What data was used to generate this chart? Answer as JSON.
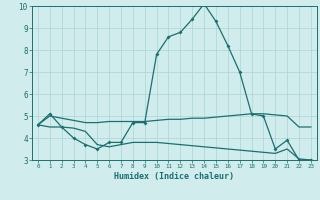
{
  "xlabel": "Humidex (Indice chaleur)",
  "x": [
    0,
    1,
    2,
    3,
    4,
    5,
    6,
    7,
    8,
    9,
    10,
    11,
    12,
    13,
    14,
    15,
    16,
    17,
    18,
    19,
    20,
    21,
    22,
    23
  ],
  "line_top": [
    4.6,
    5.1,
    4.5,
    4.0,
    3.7,
    3.5,
    3.8,
    3.8,
    4.7,
    4.7,
    7.8,
    8.6,
    8.8,
    9.4,
    10.1,
    9.3,
    8.2,
    7.0,
    5.1,
    5.0,
    3.5,
    3.9,
    3.0,
    3.0
  ],
  "line_mid": [
    4.6,
    5.0,
    4.9,
    4.8,
    4.7,
    4.7,
    4.75,
    4.75,
    4.75,
    4.75,
    4.8,
    4.85,
    4.85,
    4.9,
    4.9,
    4.95,
    5.0,
    5.05,
    5.1,
    5.1,
    5.05,
    5.0,
    4.5,
    4.5
  ],
  "line_bot": [
    4.6,
    4.5,
    4.5,
    4.45,
    4.3,
    3.7,
    3.6,
    3.7,
    3.8,
    3.8,
    3.8,
    3.75,
    3.7,
    3.65,
    3.6,
    3.55,
    3.5,
    3.45,
    3.4,
    3.35,
    3.3,
    3.5,
    3.05,
    3.0
  ],
  "color": "#1a7070",
  "bg_color": "#d0ecec",
  "grid_color": "#aad4d4",
  "ylim": [
    3,
    10
  ],
  "xlim": [
    -0.5,
    23.5
  ]
}
